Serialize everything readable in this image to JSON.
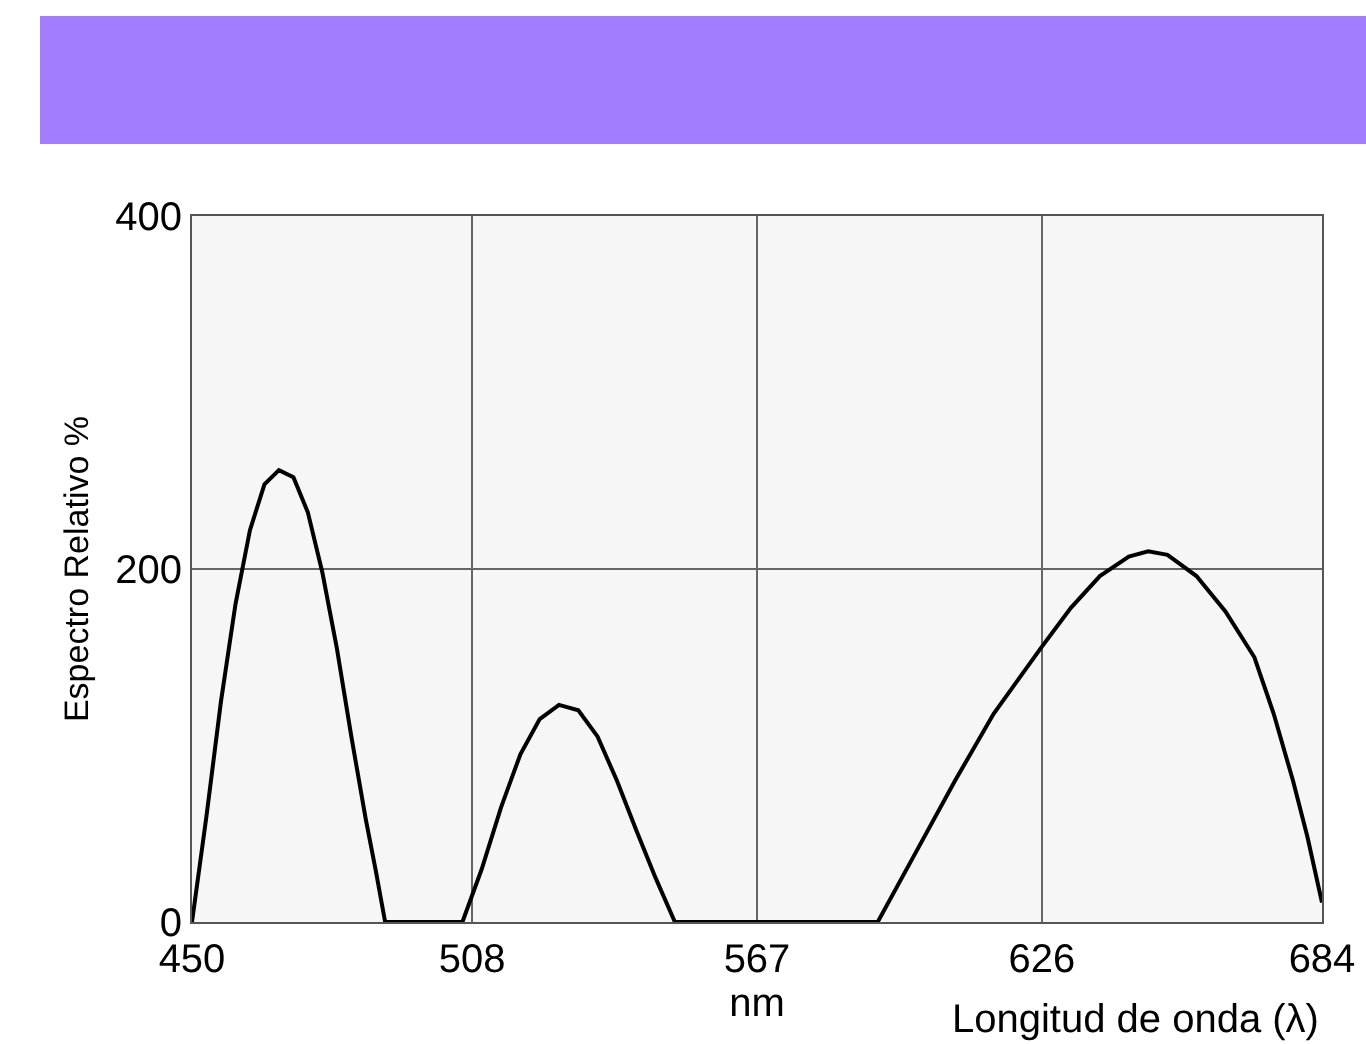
{
  "chart_data": {
    "type": "line",
    "xlabel": "nm",
    "ylabel": "Espectro Relativo %",
    "annotations": [
      "Longitud de onda (λ)"
    ],
    "series": [
      {
        "color": "#000000",
        "x": [
          450,
          453,
          456,
          459,
          462,
          465,
          468,
          471,
          474,
          477,
          480,
          483,
          486,
          488,
          490,
          506,
          510,
          514,
          518,
          522,
          526,
          530,
          534,
          538,
          542,
          546,
          550,
          592,
          600,
          608,
          616,
          626,
          632,
          638,
          644,
          648,
          652,
          658,
          664,
          670,
          674,
          678,
          681,
          684
        ],
        "values": [
          0,
          60,
          125,
          180,
          222,
          248,
          256,
          252,
          232,
          198,
          155,
          105,
          58,
          30,
          0,
          0,
          30,
          65,
          95,
          115,
          123,
          120,
          105,
          80,
          52,
          25,
          0,
          0,
          40,
          80,
          118,
          156,
          178,
          196,
          207,
          210,
          208,
          196,
          176,
          150,
          118,
          80,
          48,
          11
        ]
      }
    ],
    "xlim": [
      450,
      684
    ],
    "xticks": [
      450,
      508,
      567,
      626,
      684
    ],
    "ylim": [
      0,
      400
    ],
    "yticks": [
      0,
      200,
      400
    ],
    "grid": true,
    "marker": "none",
    "line_style": "solid"
  }
}
